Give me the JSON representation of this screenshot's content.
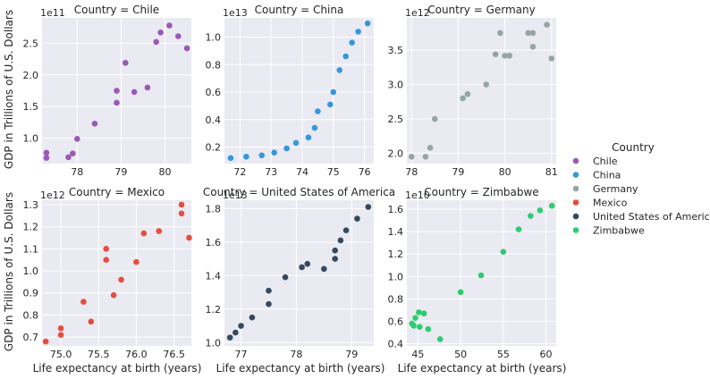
{
  "chart_data": {
    "type": "scatter",
    "y_label": "GDP in Trillions of U.S. Dollars",
    "x_label": "Life expectancy at birth (years)",
    "legend": {
      "title": "Country",
      "placement": "right",
      "entries": [
        {
          "label": "Chile",
          "color": "#9b59b6"
        },
        {
          "label": "China",
          "color": "#3498db"
        },
        {
          "label": "Germany",
          "color": "#95a5a6"
        },
        {
          "label": "Mexico",
          "color": "#e74c3c"
        },
        {
          "label": "United States of America",
          "color": "#34495e"
        },
        {
          "label": "Zimbabwe",
          "color": "#2ecc71"
        }
      ]
    },
    "grid": true,
    "panels": [
      {
        "title": "Country = Chile",
        "offset_label": "1e11",
        "color": "#9b59b6",
        "xlim": [
          77.2,
          80.6
        ],
        "ylim": [
          0.6,
          2.9
        ],
        "xticks": [
          78,
          79,
          80
        ],
        "xtick_labels": [
          "78",
          "79",
          "80"
        ],
        "yticks": [
          1.0,
          1.5,
          2.0,
          2.5
        ],
        "ytick_labels": [
          "1.0",
          "1.5",
          "2.0",
          "2.5"
        ],
        "points": [
          [
            77.3,
            0.77
          ],
          [
            77.3,
            0.69
          ],
          [
            77.8,
            0.7
          ],
          [
            77.9,
            0.76
          ],
          [
            78.0,
            0.99
          ],
          [
            78.4,
            1.23
          ],
          [
            78.9,
            1.56
          ],
          [
            78.9,
            1.75
          ],
          [
            79.1,
            2.19
          ],
          [
            79.3,
            1.73
          ],
          [
            79.6,
            1.8
          ],
          [
            79.8,
            2.52
          ],
          [
            79.9,
            2.67
          ],
          [
            80.1,
            2.78
          ],
          [
            80.3,
            2.61
          ],
          [
            80.5,
            2.42
          ]
        ]
      },
      {
        "title": "Country = China",
        "offset_label": "1e13",
        "color": "#3498db",
        "xlim": [
          71.5,
          76.3
        ],
        "ylim": [
          0.08,
          1.14
        ],
        "xticks": [
          72,
          73,
          74,
          75,
          76
        ],
        "xtick_labels": [
          "72",
          "73",
          "74",
          "75",
          "76"
        ],
        "yticks": [
          0.2,
          0.4,
          0.6,
          0.8,
          1.0
        ],
        "ytick_labels": [
          "0.2",
          "0.4",
          "0.6",
          "0.8",
          "1.0"
        ],
        "points": [
          [
            71.7,
            0.12
          ],
          [
            72.2,
            0.13
          ],
          [
            72.7,
            0.14
          ],
          [
            73.1,
            0.16
          ],
          [
            73.5,
            0.19
          ],
          [
            73.8,
            0.23
          ],
          [
            74.2,
            0.27
          ],
          [
            74.4,
            0.34
          ],
          [
            74.5,
            0.46
          ],
          [
            74.9,
            0.51
          ],
          [
            75.0,
            0.6
          ],
          [
            75.2,
            0.76
          ],
          [
            75.4,
            0.86
          ],
          [
            75.6,
            0.96
          ],
          [
            75.8,
            1.04
          ],
          [
            76.1,
            1.1
          ]
        ]
      },
      {
        "title": "Country = Germany",
        "offset_label": "1e12",
        "color": "#95a5a6",
        "xlim": [
          77.9,
          81.1
        ],
        "ylim": [
          1.85,
          3.97
        ],
        "xticks": [
          78,
          79,
          80,
          81
        ],
        "xtick_labels": [
          "78",
          "79",
          "80",
          "81"
        ],
        "yticks": [
          2.0,
          2.5,
          3.0,
          3.5
        ],
        "ytick_labels": [
          "2.0",
          "2.5",
          "3.0",
          "3.5"
        ],
        "points": [
          [
            78.0,
            1.95
          ],
          [
            78.3,
            1.95
          ],
          [
            78.4,
            2.08
          ],
          [
            78.5,
            2.5
          ],
          [
            79.1,
            2.8
          ],
          [
            79.2,
            2.86
          ],
          [
            79.6,
            3.0
          ],
          [
            79.8,
            3.44
          ],
          [
            79.9,
            3.75
          ],
          [
            80.0,
            3.42
          ],
          [
            80.1,
            3.42
          ],
          [
            80.5,
            3.75
          ],
          [
            80.6,
            3.55
          ],
          [
            80.6,
            3.75
          ],
          [
            80.9,
            3.87
          ],
          [
            81.0,
            3.38
          ]
        ]
      },
      {
        "title": "Country = Mexico",
        "offset_label": "1e12",
        "color": "#e74c3c",
        "xlim": [
          74.75,
          76.73
        ],
        "ylim": [
          0.66,
          1.32
        ],
        "xticks": [
          75.0,
          75.5,
          76.0,
          76.5
        ],
        "xtick_labels": [
          "75.0",
          "75.5",
          "76.0",
          "76.5"
        ],
        "yticks": [
          0.7,
          0.8,
          0.9,
          1.0,
          1.1,
          1.2,
          1.3
        ],
        "ytick_labels": [
          "0.7",
          "0.8",
          "0.9",
          "1.0",
          "1.1",
          "1.2",
          "1.3"
        ],
        "points": [
          [
            74.8,
            0.68
          ],
          [
            75.0,
            0.71
          ],
          [
            75.0,
            0.74
          ],
          [
            75.3,
            0.86
          ],
          [
            75.4,
            0.77
          ],
          [
            75.6,
            1.05
          ],
          [
            75.6,
            1.1
          ],
          [
            75.7,
            0.89
          ],
          [
            75.8,
            0.96
          ],
          [
            76.0,
            1.04
          ],
          [
            76.1,
            1.17
          ],
          [
            76.3,
            1.18
          ],
          [
            76.6,
            1.26
          ],
          [
            76.6,
            1.3
          ],
          [
            76.7,
            1.15
          ]
        ]
      },
      {
        "title": "Country = United States of America",
        "offset_label": "1e13",
        "color": "#34495e",
        "xlim": [
          76.7,
          79.4
        ],
        "ylim": [
          0.98,
          1.85
        ],
        "xticks": [
          77,
          78,
          79
        ],
        "xtick_labels": [
          "77",
          "78",
          "79"
        ],
        "yticks": [
          1.0,
          1.2,
          1.4,
          1.6,
          1.8
        ],
        "ytick_labels": [
          "1.0",
          "1.2",
          "1.4",
          "1.6",
          "1.8"
        ],
        "points": [
          [
            76.8,
            1.03
          ],
          [
            76.9,
            1.06
          ],
          [
            77.0,
            1.1
          ],
          [
            77.2,
            1.15
          ],
          [
            77.5,
            1.23
          ],
          [
            77.5,
            1.31
          ],
          [
            77.8,
            1.39
          ],
          [
            78.1,
            1.45
          ],
          [
            78.2,
            1.47
          ],
          [
            78.5,
            1.44
          ],
          [
            78.7,
            1.5
          ],
          [
            78.7,
            1.55
          ],
          [
            78.8,
            1.61
          ],
          [
            78.9,
            1.67
          ],
          [
            79.1,
            1.74
          ],
          [
            79.3,
            1.81
          ]
        ]
      },
      {
        "title": "Country = Zimbabwe",
        "offset_label": "1e10",
        "color": "#2ecc71",
        "xlim": [
          43.7,
          61.2
        ],
        "ylim": [
          0.38,
          1.68
        ],
        "xticks": [
          45,
          50,
          55,
          60
        ],
        "xtick_labels": [
          "45",
          "50",
          "55",
          "60"
        ],
        "yticks": [
          0.4,
          0.6,
          0.8,
          1.0,
          1.2,
          1.4,
          1.6
        ],
        "ytick_labels": [
          "0.4",
          "0.6",
          "0.8",
          "1.0",
          "1.2",
          "1.4",
          "1.6"
        ],
        "points": [
          [
            44.3,
            0.58
          ],
          [
            44.5,
            0.56
          ],
          [
            44.7,
            0.63
          ],
          [
            45.1,
            0.68
          ],
          [
            45.2,
            0.55
          ],
          [
            45.7,
            0.67
          ],
          [
            46.2,
            0.53
          ],
          [
            47.6,
            0.44
          ],
          [
            50.0,
            0.86
          ],
          [
            52.4,
            1.01
          ],
          [
            55.0,
            1.22
          ],
          [
            56.8,
            1.42
          ],
          [
            58.2,
            1.54
          ],
          [
            59.3,
            1.59
          ],
          [
            60.7,
            1.63
          ]
        ]
      }
    ]
  }
}
